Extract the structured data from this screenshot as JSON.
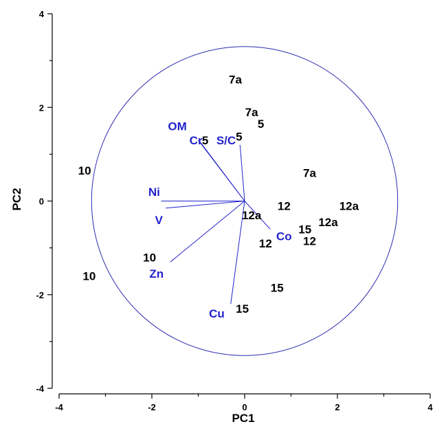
{
  "colors": {
    "variables": "#2222cc",
    "circle": "#2a2ab0",
    "observations": "#000000"
  },
  "chart_data": {
    "type": "scatter",
    "title": "",
    "xlabel": "PC1",
    "ylabel": "PC2",
    "xlim": [
      -4,
      4
    ],
    "ylim": [
      -4,
      4
    ],
    "xticks": [
      "-4",
      "-2",
      "0",
      "2",
      "4"
    ],
    "yticks": [
      "4",
      "2",
      "0",
      "-2",
      "-4"
    ],
    "grid": false,
    "correlation_circle_radius": 3.3,
    "observations": [
      {
        "label": "7a",
        "x": -0.2,
        "y": 2.6
      },
      {
        "label": "7a",
        "x": 0.15,
        "y": 1.9
      },
      {
        "label": "5",
        "x": 0.35,
        "y": 1.65
      },
      {
        "label": "5",
        "x": -0.85,
        "y": 1.3
      },
      {
        "label": "5",
        "x": -0.12,
        "y": 1.38
      },
      {
        "label": "10",
        "x": -3.45,
        "y": 0.65
      },
      {
        "label": "7a",
        "x": 1.4,
        "y": 0.6
      },
      {
        "label": "12",
        "x": 0.85,
        "y": -0.1
      },
      {
        "label": "12a",
        "x": 2.25,
        "y": -0.1
      },
      {
        "label": "12a",
        "x": 0.15,
        "y": -0.3
      },
      {
        "label": "12a",
        "x": 1.8,
        "y": -0.45
      },
      {
        "label": "15",
        "x": 1.3,
        "y": -0.6
      },
      {
        "label": "12",
        "x": 1.4,
        "y": -0.85
      },
      {
        "label": "12",
        "x": 0.45,
        "y": -0.9
      },
      {
        "label": "10",
        "x": -2.05,
        "y": -1.2
      },
      {
        "label": "10",
        "x": -3.35,
        "y": -1.6
      },
      {
        "label": "15",
        "x": 0.7,
        "y": -1.85
      },
      {
        "label": "15",
        "x": -0.05,
        "y": -2.3
      }
    ],
    "variables": [
      {
        "label": "OM",
        "x": -1.0,
        "y": 1.3,
        "label_x": -1.45,
        "label_y": 1.6
      },
      {
        "label": "Cr",
        "x": -0.95,
        "y": 1.25,
        "label_x": -1.05,
        "label_y": 1.3
      },
      {
        "label": "S/C",
        "x": -0.1,
        "y": 1.2,
        "label_x": -0.4,
        "label_y": 1.3
      },
      {
        "label": "Ni",
        "x": -1.8,
        "y": 0.0,
        "label_x": -1.95,
        "label_y": 0.2
      },
      {
        "label": "V",
        "x": -1.7,
        "y": -0.15,
        "label_x": -1.85,
        "label_y": -0.4
      },
      {
        "label": "Zn",
        "x": -1.6,
        "y": -1.3,
        "label_x": -1.9,
        "label_y": -1.55
      },
      {
        "label": "Cu",
        "x": -0.3,
        "y": -2.2,
        "label_x": -0.6,
        "label_y": -2.4
      },
      {
        "label": "Co",
        "x": 0.55,
        "y": -0.6,
        "label_x": 0.85,
        "label_y": -0.75
      }
    ]
  }
}
